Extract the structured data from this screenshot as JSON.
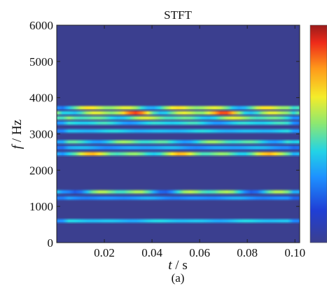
{
  "chart_data": {
    "type": "heatmap",
    "title": "STFT",
    "x_label": {
      "var": "t",
      "unit": "s"
    },
    "y_label": {
      "var": "f",
      "unit": "Hz"
    },
    "caption": "(a)",
    "xlim": [
      0,
      0.102
    ],
    "ylim": [
      0,
      6000
    ],
    "x_ticks": [
      0.02,
      0.04,
      0.06,
      0.08,
      0.1
    ],
    "x_tick_labels": [
      "0.02",
      "0.04",
      "0.06",
      "0.08",
      "0.10"
    ],
    "y_ticks": [
      0,
      1000,
      2000,
      3000,
      4000,
      5000,
      6000
    ],
    "y_tick_labels": [
      "0",
      "1000",
      "2000",
      "3000",
      "4000",
      "5000",
      "6000"
    ],
    "colormap": "jet",
    "background_color": "#3b3f8f",
    "bands": [
      {
        "freq_hz": 600,
        "intensity": 0.38,
        "variation": 0.05
      },
      {
        "freq_hz": 1230,
        "intensity": 0.3,
        "variation": 0.05
      },
      {
        "freq_hz": 1400,
        "intensity": 0.45,
        "variation": 0.25
      },
      {
        "freq_hz": 2450,
        "intensity": 0.55,
        "variation": 0.22
      },
      {
        "freq_hz": 2620,
        "intensity": 0.33,
        "variation": 0.05
      },
      {
        "freq_hz": 2780,
        "intensity": 0.45,
        "variation": 0.15
      },
      {
        "freq_hz": 3080,
        "intensity": 0.38,
        "variation": 0.05
      },
      {
        "freq_hz": 3300,
        "intensity": 0.4,
        "variation": 0.1
      },
      {
        "freq_hz": 3440,
        "intensity": 0.5,
        "variation": 0.15
      },
      {
        "freq_hz": 3580,
        "intensity": 0.62,
        "variation": 0.3
      },
      {
        "freq_hz": 3720,
        "intensity": 0.55,
        "variation": 0.22
      }
    ]
  }
}
